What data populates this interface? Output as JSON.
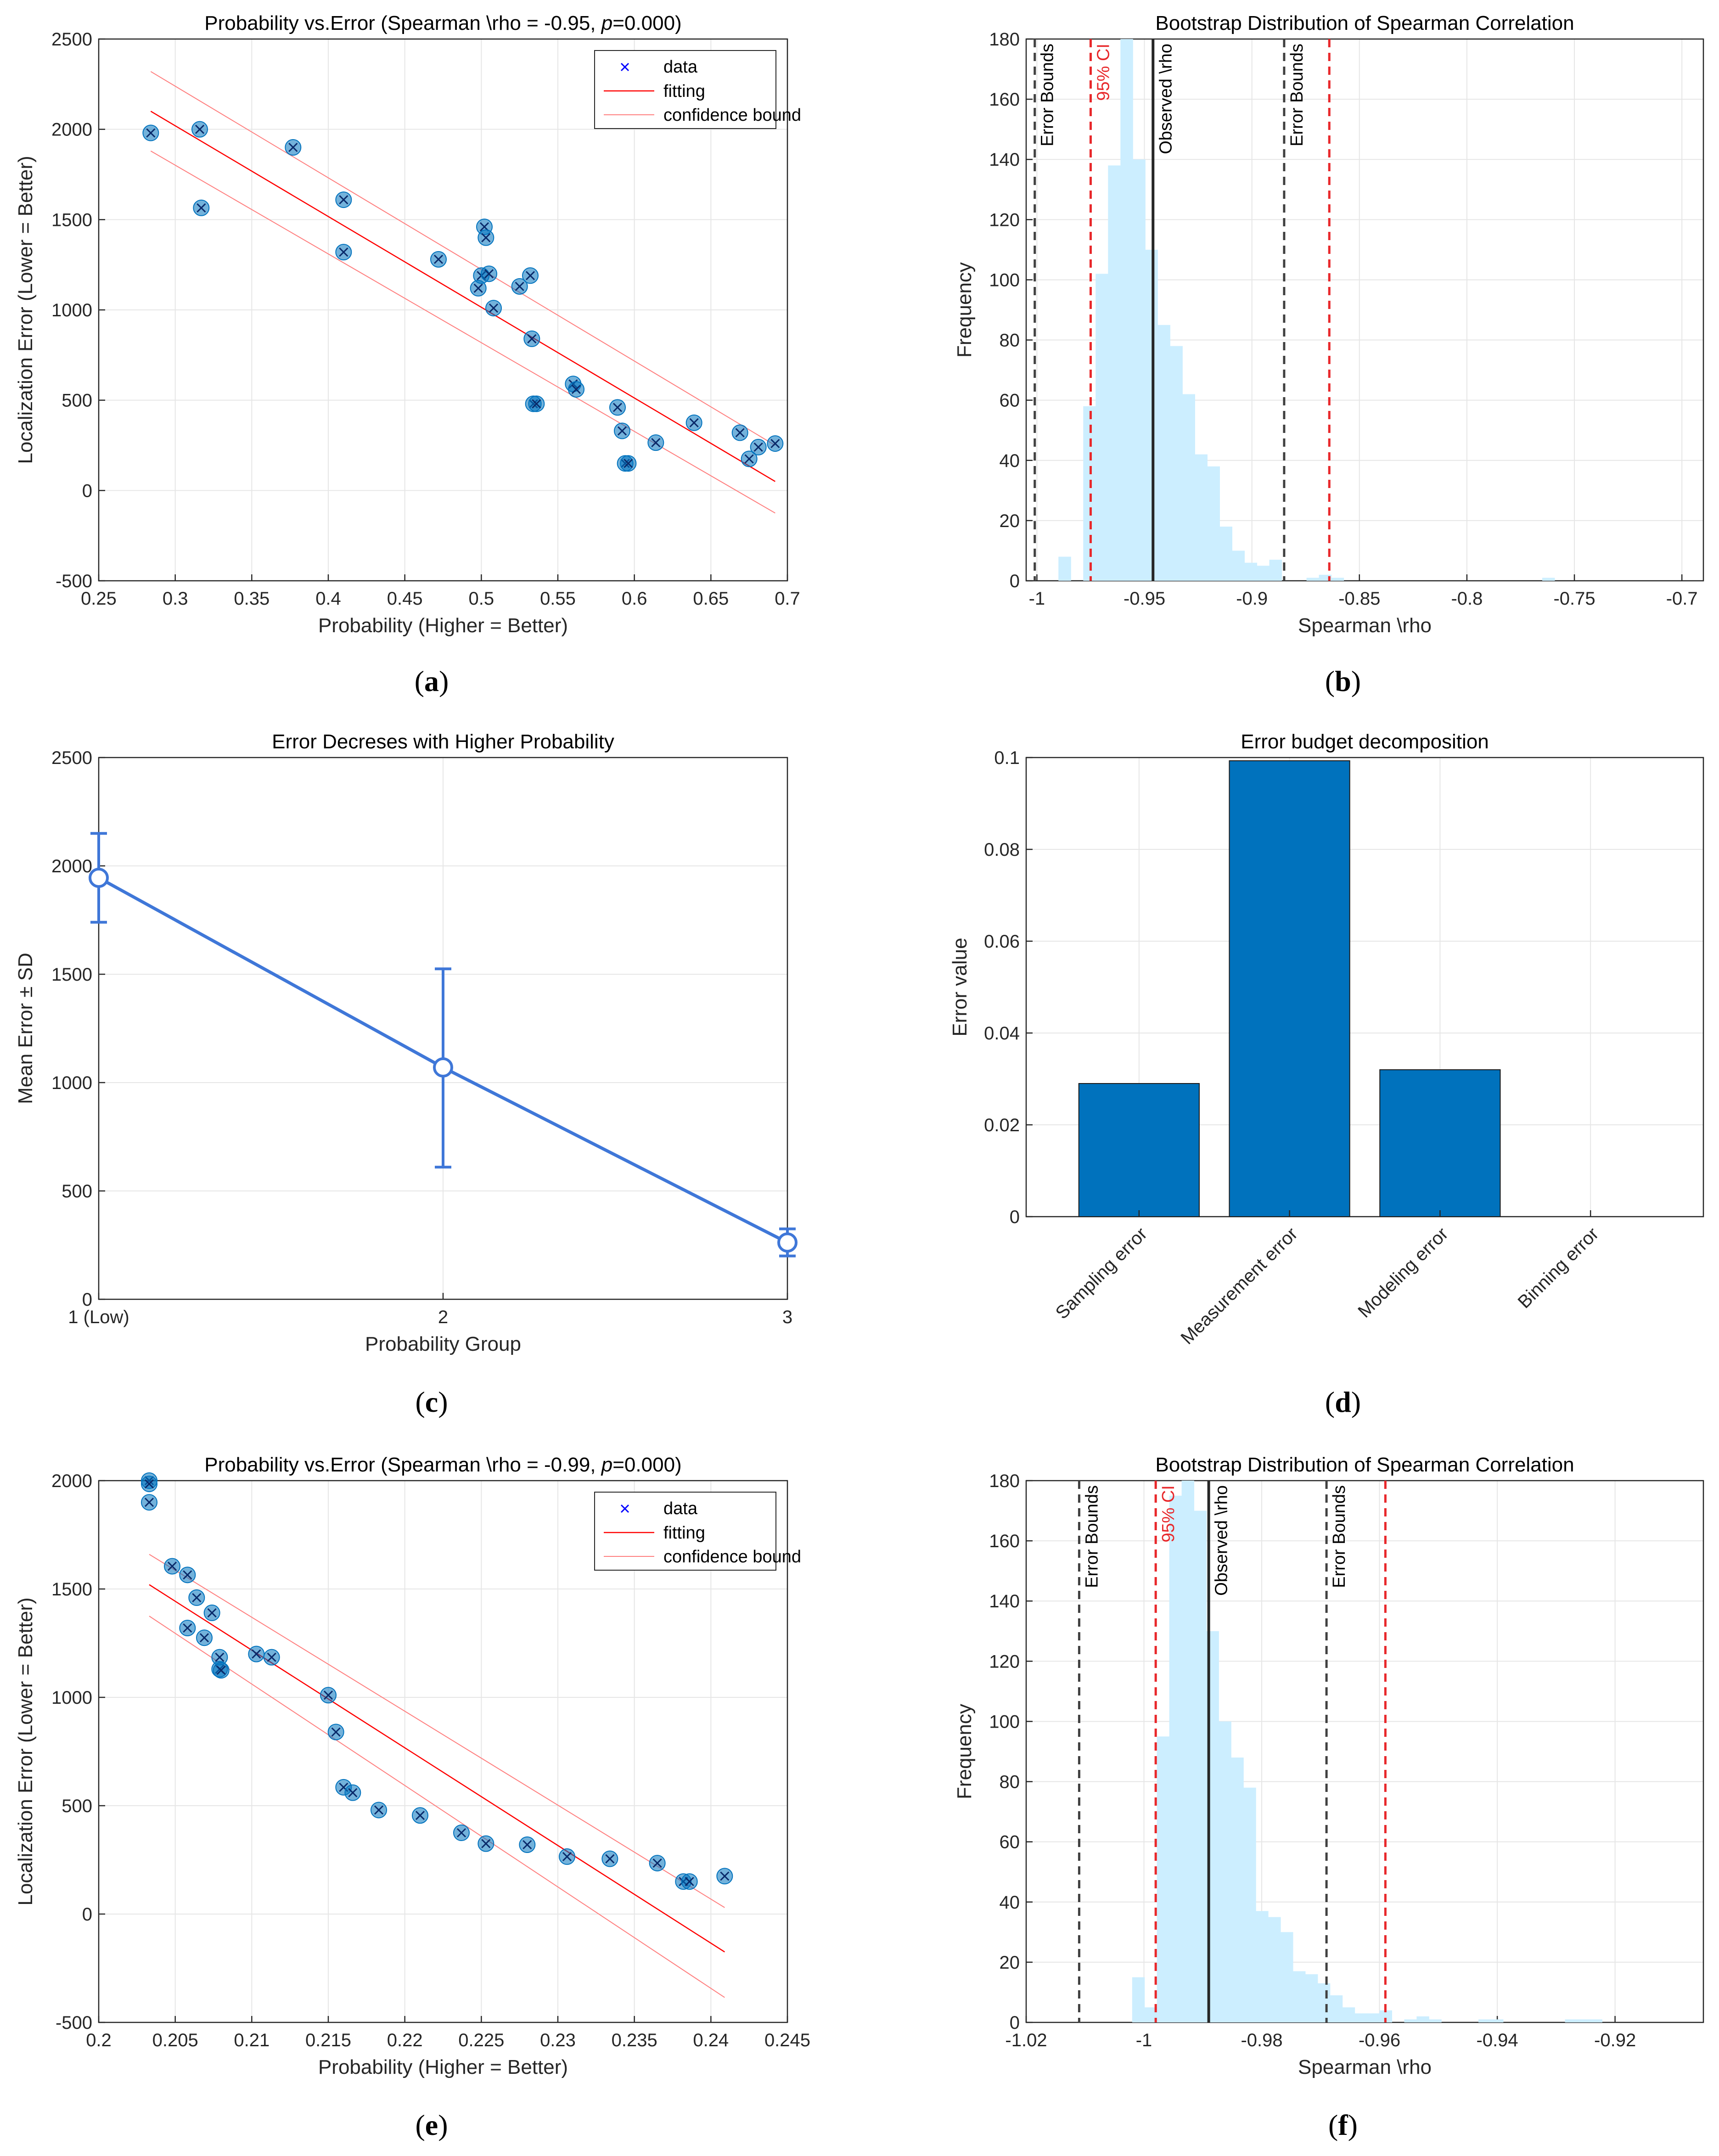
{
  "panels": {
    "a": "a",
    "b": "b",
    "c": "c",
    "d": "d",
    "e": "e",
    "f": "f"
  },
  "colors": {
    "marker": "#0072BD",
    "fit": "#FF0000",
    "bound": "#FF7F7F",
    "hist": "#CCEEFF",
    "line_c": "#3F77D8",
    "bar": "#0072BD",
    "ci": "#E8282B",
    "bounds": "#404040",
    "observed": "#262626"
  },
  "chart_data": [
    {
      "id": "a",
      "type": "scatter",
      "title": "Probability vs.Error (Spearman \\rho = -0.95,",
      "title_p": "p",
      "title_tail": "=0.000)",
      "xlabel": "Probability (Higher = Better)",
      "ylabel": "Localization Error (Lower = Better)",
      "xlim": [
        0.25,
        0.7
      ],
      "ylim": [
        -500,
        2500
      ],
      "xticks": [
        0.25,
        0.3,
        0.35,
        0.4,
        0.45,
        0.5,
        0.55,
        0.6,
        0.65,
        0.7
      ],
      "xtick_labels": [
        "0.25",
        "0.3",
        "0.35",
        "0.4",
        "0.45",
        "0.5",
        "0.55",
        "0.6",
        "0.65",
        "0.7"
      ],
      "yticks": [
        -500,
        0,
        500,
        1000,
        1500,
        2000,
        2500
      ],
      "ytick_labels": [
        "-500",
        "0",
        "500",
        "1000",
        "1500",
        "2000",
        "2500"
      ],
      "legend": [
        "data",
        "fitting",
        "confidence bound"
      ],
      "points": [
        [
          0.284,
          1980
        ],
        [
          0.316,
          2000
        ],
        [
          0.317,
          1565
        ],
        [
          0.377,
          1900
        ],
        [
          0.41,
          1610
        ],
        [
          0.41,
          1320
        ],
        [
          0.472,
          1280
        ],
        [
          0.498,
          1120
        ],
        [
          0.5,
          1190
        ],
        [
          0.502,
          1460
        ],
        [
          0.503,
          1400
        ],
        [
          0.505,
          1200
        ],
        [
          0.508,
          1010
        ],
        [
          0.525,
          1130
        ],
        [
          0.532,
          1190
        ],
        [
          0.533,
          840
        ],
        [
          0.534,
          480
        ],
        [
          0.536,
          480
        ],
        [
          0.56,
          590
        ],
        [
          0.562,
          560
        ],
        [
          0.589,
          460
        ],
        [
          0.592,
          330
        ],
        [
          0.594,
          150
        ],
        [
          0.596,
          150
        ],
        [
          0.614,
          265
        ],
        [
          0.639,
          375
        ],
        [
          0.669,
          320
        ],
        [
          0.675,
          175
        ],
        [
          0.681,
          240
        ],
        [
          0.692,
          260
        ]
      ],
      "fit": [
        [
          0.284,
          2100
        ],
        [
          0.692,
          50
        ]
      ],
      "upper_bound": [
        [
          0.284,
          2320
        ],
        [
          0.692,
          250
        ]
      ],
      "lower_bound": [
        [
          0.284,
          1880
        ],
        [
          0.692,
          -125
        ]
      ]
    },
    {
      "id": "b",
      "type": "bar",
      "title": "Bootstrap Distribution of Spearman Correlation",
      "xlabel": "Spearman \\rho",
      "ylabel": "Frequency",
      "xlim": [
        -1.005,
        -0.69
      ],
      "ylim": [
        0,
        180
      ],
      "xticks": [
        -1,
        -0.95,
        -0.9,
        -0.85,
        -0.8,
        -0.75,
        -0.7
      ],
      "xtick_labels": [
        "-1",
        "-0.95",
        "-0.9",
        "-0.85",
        "-0.8",
        "-0.75",
        "-0.7"
      ],
      "yticks": [
        0,
        20,
        40,
        60,
        80,
        100,
        120,
        140,
        160,
        180
      ],
      "ytick_labels": [
        "0",
        "20",
        "40",
        "60",
        "80",
        "100",
        "120",
        "140",
        "160",
        "180"
      ],
      "bin_start": -0.99,
      "bin_width": 0.00577,
      "counts": [
        8,
        0,
        58,
        102,
        138,
        180,
        140,
        110,
        85,
        78,
        62,
        42,
        38,
        18,
        10,
        6,
        5,
        7,
        0,
        0,
        1,
        2,
        1,
        0,
        0,
        0,
        0,
        0,
        0,
        0,
        0,
        0,
        0,
        0,
        0,
        0,
        0,
        0,
        0,
        1
      ],
      "lines": [
        {
          "x": -1.001,
          "kind": "bounds",
          "label": "Error Bounds"
        },
        {
          "x": -0.975,
          "kind": "ci",
          "label": "95% CI"
        },
        {
          "x": -0.946,
          "kind": "observed",
          "label": "Observed \\rho"
        },
        {
          "x": -0.885,
          "kind": "bounds",
          "label": "Error Bounds"
        },
        {
          "x": -0.864,
          "kind": "ci",
          "label": ""
        }
      ]
    },
    {
      "id": "c",
      "type": "line",
      "title": "Error Decreses with Higher Probability",
      "xlabel": "Probability Group",
      "ylabel": "Mean Error ± SD",
      "xlim": [
        1,
        3
      ],
      "ylim": [
        0,
        2500
      ],
      "xticks": [
        1,
        2,
        3
      ],
      "xtick_labels": [
        "1 (Low)",
        "2",
        "3"
      ],
      "yticks": [
        0,
        500,
        1000,
        1500,
        2000,
        2500
      ],
      "ytick_labels": [
        "0",
        "500",
        "1000",
        "1500",
        "2000",
        "2500"
      ],
      "x": [
        1,
        2,
        3
      ],
      "values": [
        1945,
        1070,
        262
      ],
      "err_low": [
        1740,
        610,
        200
      ],
      "err_high": [
        2150,
        1525,
        325
      ]
    },
    {
      "id": "d",
      "type": "bar",
      "title": "Error budget decomposition",
      "xlabel": "",
      "ylabel": "Error value",
      "ylim": [
        0,
        0.1
      ],
      "yticks": [
        0,
        0.02,
        0.04,
        0.06,
        0.08,
        0.1
      ],
      "ytick_labels": [
        "0",
        "0.02",
        "0.04",
        "0.06",
        "0.08",
        "0.1"
      ],
      "categories": [
        "Sampling error",
        "Measurement error",
        "Modeling error",
        "Binning error"
      ],
      "values": [
        0.029,
        0.0993,
        0.032,
        0
      ]
    },
    {
      "id": "e",
      "type": "scatter",
      "title": "Probability vs.Error (Spearman \\rho = -0.99,",
      "title_p": "p",
      "title_tail": "=0.000)",
      "xlabel": "Probability (Higher = Better)",
      "ylabel": "Localization Error (Lower = Better)",
      "xlim": [
        0.2,
        0.245
      ],
      "ylim": [
        -500,
        2000
      ],
      "xticks": [
        0.2,
        0.205,
        0.21,
        0.215,
        0.22,
        0.225,
        0.23,
        0.235,
        0.24,
        0.245
      ],
      "xtick_labels": [
        "0.2",
        "0.205",
        "0.21",
        "0.215",
        "0.22",
        "0.225",
        "0.23",
        "0.235",
        "0.24",
        "0.245"
      ],
      "yticks": [
        -500,
        0,
        500,
        1000,
        1500,
        2000
      ],
      "ytick_labels": [
        "-500",
        "0",
        "500",
        "1000",
        "1500",
        "2000"
      ],
      "legend": [
        "data",
        "fitting",
        "confidence bound"
      ],
      "points": [
        [
          0.2033,
          2000
        ],
        [
          0.2033,
          1985
        ],
        [
          0.2033,
          1900
        ],
        [
          0.2048,
          1605
        ],
        [
          0.2058,
          1565
        ],
        [
          0.2058,
          1320
        ],
        [
          0.2064,
          1460
        ],
        [
          0.2069,
          1275
        ],
        [
          0.2074,
          1390
        ],
        [
          0.2079,
          1185
        ],
        [
          0.2079,
          1130
        ],
        [
          0.208,
          1125
        ],
        [
          0.2103,
          1200
        ],
        [
          0.2113,
          1185
        ],
        [
          0.215,
          1010
        ],
        [
          0.2155,
          840
        ],
        [
          0.216,
          585
        ],
        [
          0.2166,
          560
        ],
        [
          0.2183,
          480
        ],
        [
          0.221,
          455
        ],
        [
          0.2237,
          375
        ],
        [
          0.2253,
          325
        ],
        [
          0.228,
          320
        ],
        [
          0.2306,
          265
        ],
        [
          0.2334,
          255
        ],
        [
          0.2365,
          235
        ],
        [
          0.2382,
          150
        ],
        [
          0.2386,
          150
        ],
        [
          0.2409,
          175
        ]
      ],
      "fit": [
        [
          0.2033,
          1520
        ],
        [
          0.2409,
          -175
        ]
      ],
      "upper_bound": [
        [
          0.2033,
          1660
        ],
        [
          0.2409,
          30
        ]
      ],
      "lower_bound": [
        [
          0.2033,
          1375
        ],
        [
          0.2409,
          -385
        ]
      ]
    },
    {
      "id": "f",
      "type": "bar",
      "title": "Bootstrap Distribution of Spearman Correlation",
      "xlabel": "Spearman \\rho",
      "ylabel": "Frequency",
      "xlim": [
        -1.02,
        -0.905
      ],
      "ylim": [
        0,
        180
      ],
      "xticks": [
        -1.02,
        -1,
        -0.98,
        -0.96,
        -0.94,
        -0.92
      ],
      "xtick_labels": [
        "-1.02",
        "-1",
        "-0.98",
        "-0.96",
        "-0.94",
        "-0.92"
      ],
      "yticks": [
        0,
        20,
        40,
        60,
        80,
        100,
        120,
        140,
        160,
        180
      ],
      "ytick_labels": [
        "0",
        "20",
        "40",
        "60",
        "80",
        "100",
        "120",
        "140",
        "160",
        "180"
      ],
      "bin_start": -1.002,
      "bin_width": 0.0021,
      "counts": [
        15,
        5,
        95,
        175,
        180,
        170,
        130,
        100,
        88,
        78,
        37,
        35,
        30,
        17,
        16,
        13,
        9,
        5,
        3,
        3,
        4,
        0,
        1,
        2,
        1,
        0,
        0,
        0,
        1,
        1,
        0,
        0,
        0,
        0,
        0,
        1,
        1,
        1,
        0
      ],
      "lines": [
        {
          "x": -1.011,
          "kind": "bounds",
          "label": "Error Bounds"
        },
        {
          "x": -0.998,
          "kind": "ci",
          "label": "95% CI"
        },
        {
          "x": -0.989,
          "kind": "observed",
          "label": "Observed \\rho"
        },
        {
          "x": -0.969,
          "kind": "bounds",
          "label": "Error Bounds"
        },
        {
          "x": -0.959,
          "kind": "ci",
          "label": ""
        }
      ]
    }
  ]
}
